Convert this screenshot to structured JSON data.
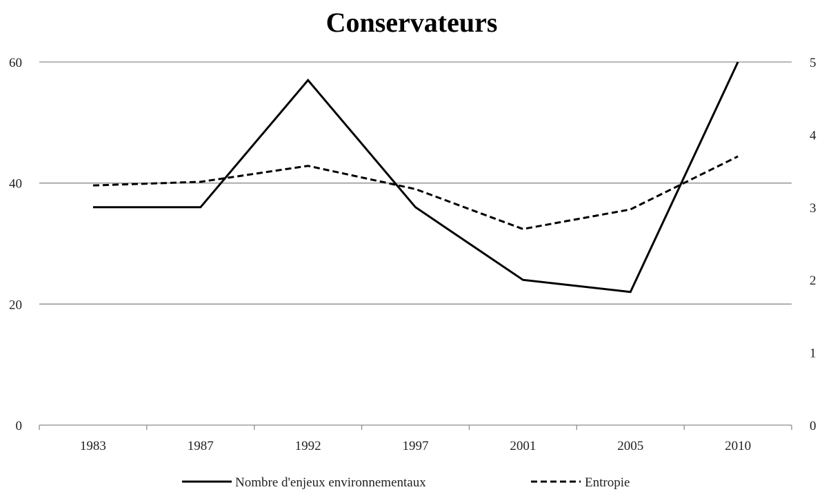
{
  "chart_data": {
    "type": "line",
    "title": "Conservateurs",
    "categories": [
      "1983",
      "1987",
      "1992",
      "1997",
      "2001",
      "2005",
      "2010"
    ],
    "y_left": {
      "ticks": [
        "0",
        "20",
        "40",
        "60"
      ],
      "ylim": [
        0,
        60
      ]
    },
    "y_right": {
      "ticks": [
        "0",
        "1",
        "2",
        "3",
        "4",
        "5"
      ],
      "ylim": [
        0,
        5
      ]
    },
    "series": [
      {
        "name": "Nombre d'enjeux environnementaux",
        "axis": "left",
        "style": "solid",
        "values": [
          36,
          36,
          57,
          36,
          24,
          22,
          60
        ]
      },
      {
        "name": "Entropie",
        "axis": "right",
        "style": "dashed",
        "values": [
          3.3,
          3.35,
          3.57,
          3.25,
          2.7,
          2.97,
          3.7
        ]
      }
    ],
    "grid": true,
    "legend": "bottom"
  }
}
